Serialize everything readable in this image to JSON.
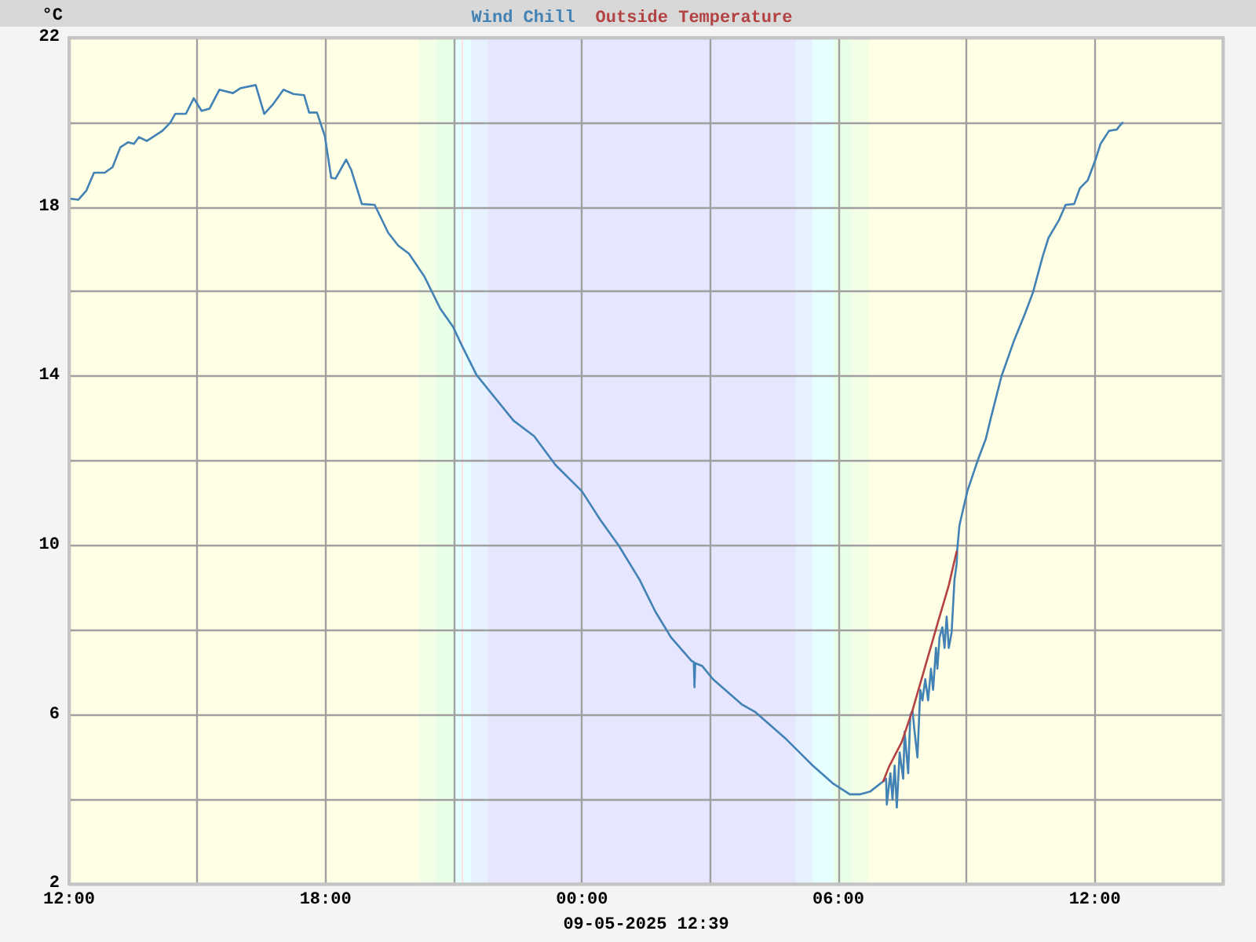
{
  "chart_data": {
    "type": "line",
    "ylabel": "°C",
    "xlabel": "09-05-2025 12:39",
    "series": [
      {
        "name": "Wind Chill",
        "color": "#4282b4",
        "x": [
          "2025-05-08T12:00",
          "2025-05-08T12:13",
          "2025-05-08T12:24",
          "2025-05-08T12:35",
          "2025-05-08T12:50",
          "2025-05-08T13:01",
          "2025-05-08T13:12",
          "2025-05-08T13:23",
          "2025-05-08T13:31",
          "2025-05-08T13:38",
          "2025-05-08T13:49",
          "2025-05-08T14:00",
          "2025-05-08T14:11",
          "2025-05-08T14:22",
          "2025-05-08T14:29",
          "2025-05-08T14:44",
          "2025-05-08T14:55",
          "2025-05-08T15:06",
          "2025-05-08T15:17",
          "2025-05-08T15:31",
          "2025-05-08T15:50",
          "2025-05-08T16:01",
          "2025-05-08T16:22",
          "2025-05-08T16:34",
          "2025-05-08T16:46",
          "2025-05-08T17:01",
          "2025-05-08T17:15",
          "2025-05-08T17:30",
          "2025-05-08T17:37",
          "2025-05-08T17:48",
          "2025-05-08T17:59",
          "2025-05-08T18:08",
          "2025-05-08T18:14",
          "2025-05-08T18:29",
          "2025-05-08T18:36",
          "2025-05-08T18:51",
          "2025-05-08T19:09",
          "2025-05-08T19:28",
          "2025-05-08T19:42",
          "2025-05-08T19:57",
          "2025-05-08T20:19",
          "2025-05-08T20:41",
          "2025-05-08T20:59",
          "2025-05-08T21:11",
          "2025-05-08T21:32",
          "2025-05-08T22:24",
          "2025-05-08T22:53",
          "2025-05-08T23:23",
          "2025-05-09T00:00",
          "2025-05-09T00:26",
          "2025-05-09T00:52",
          "2025-05-09T01:21",
          "2025-05-09T01:43",
          "2025-05-09T02:05",
          "2025-05-09T02:34",
          "2025-05-09T02:37",
          "2025-05-09T02:38",
          "2025-05-09T02:39",
          "2025-05-09T02:49",
          "2025-05-09T03:04",
          "2025-05-09T03:44",
          "2025-05-09T04:03",
          "2025-05-09T04:47",
          "2025-05-09T05:24",
          "2025-05-09T05:53",
          "2025-05-09T06:16",
          "2025-05-09T06:30",
          "2025-05-09T06:45",
          "2025-05-09T07:03",
          "2025-05-09T07:07",
          "2025-05-09T07:08",
          "2025-05-09T07:13",
          "2025-05-09T07:16",
          "2025-05-09T07:19",
          "2025-05-09T07:22",
          "2025-05-09T07:26",
          "2025-05-09T07:31",
          "2025-05-09T07:33",
          "2025-05-09T07:38",
          "2025-05-09T07:41",
          "2025-05-09T07:44",
          "2025-05-09T07:47",
          "2025-05-09T07:51",
          "2025-05-09T07:55",
          "2025-05-09T07:58",
          "2025-05-09T08:02",
          "2025-05-09T08:06",
          "2025-05-09T08:10",
          "2025-05-09T08:13",
          "2025-05-09T08:17",
          "2025-05-09T08:19",
          "2025-05-09T08:22",
          "2025-05-09T08:26",
          "2025-05-09T08:29",
          "2025-05-09T08:32",
          "2025-05-09T08:35",
          "2025-05-09T08:39",
          "2025-05-09T08:43",
          "2025-05-09T08:46",
          "2025-05-09T08:47",
          "2025-05-09T08:50",
          "2025-05-09T09:01",
          "2025-05-09T09:16",
          "2025-05-09T09:27",
          "2025-05-09T09:34",
          "2025-05-09T09:49",
          "2025-05-09T10:07",
          "2025-05-09T10:22",
          "2025-05-09T10:33",
          "2025-05-09T10:47",
          "2025-05-09T10:55",
          "2025-05-09T11:10",
          "2025-05-09T11:19",
          "2025-05-09T11:31",
          "2025-05-09T11:39",
          "2025-05-09T11:50",
          "2025-05-09T12:01",
          "2025-05-09T12:08",
          "2025-05-09T12:20",
          "2025-05-09T12:31",
          "2025-05-09T12:34",
          "2025-05-09T12:39"
        ],
        "values": [
          18.2,
          18.17,
          18.38,
          18.81,
          18.81,
          18.94,
          19.41,
          19.53,
          19.49,
          19.65,
          19.56,
          19.68,
          19.8,
          19.99,
          20.2,
          20.2,
          20.57,
          20.27,
          20.32,
          20.77,
          20.69,
          20.81,
          20.88,
          20.2,
          20.42,
          20.77,
          20.67,
          20.64,
          20.23,
          20.23,
          19.68,
          18.69,
          18.67,
          19.12,
          18.88,
          18.07,
          18.05,
          17.39,
          17.09,
          16.9,
          16.35,
          15.6,
          15.17,
          14.74,
          14.03,
          12.95,
          12.58,
          11.9,
          11.28,
          10.6,
          9.99,
          9.19,
          8.44,
          7.83,
          7.27,
          7.25,
          6.65,
          7.22,
          7.15,
          6.84,
          6.25,
          6.07,
          5.42,
          4.8,
          4.37,
          4.12,
          4.12,
          4.19,
          4.43,
          4.49,
          3.88,
          4.62,
          4.0,
          4.8,
          3.81,
          5.11,
          4.49,
          5.6,
          4.62,
          5.99,
          6.1,
          5.6,
          4.99,
          6.59,
          6.34,
          6.84,
          6.34,
          7.09,
          6.59,
          7.58,
          7.09,
          7.83,
          8.07,
          7.58,
          8.32,
          7.58,
          7.95,
          9.19,
          9.56,
          9.93,
          10.48,
          11.28,
          12.03,
          12.52,
          13.01,
          14.0,
          14.86,
          15.48,
          15.97,
          16.84,
          17.27,
          17.7,
          18.05,
          18.07,
          18.44,
          18.63,
          19.12,
          19.49,
          19.8,
          19.83,
          19.9,
          19.99
        ]
      },
      {
        "name": "Outside Temperature",
        "color": "#b44242",
        "x": [
          "2025-05-09T07:03",
          "2025-05-09T07:11",
          "2025-05-09T07:29",
          "2025-05-09T07:44",
          "2025-05-09T08:02",
          "2025-05-09T08:20",
          "2025-05-09T08:35",
          "2025-05-09T08:46"
        ],
        "values": [
          4.43,
          4.77,
          5.36,
          6.1,
          7.15,
          8.2,
          9.06,
          9.86
        ]
      }
    ],
    "xlim": [
      "2025-05-08T12:00",
      "2025-05-09T15:00"
    ],
    "xticks": [
      {
        "value": "2025-05-08T12:00",
        "label": "12:00"
      },
      {
        "value": "2025-05-08T15:00",
        "label": null
      },
      {
        "value": "2025-05-08T18:00",
        "label": "18:00"
      },
      {
        "value": "2025-05-08T21:00",
        "label": null
      },
      {
        "value": "2025-05-09T00:00",
        "label": "00:00"
      },
      {
        "value": "2025-05-09T03:00",
        "label": null
      },
      {
        "value": "2025-05-09T06:00",
        "label": "06:00"
      },
      {
        "value": "2025-05-09T09:00",
        "label": null
      },
      {
        "value": "2025-05-09T12:00",
        "label": "12:00"
      }
    ],
    "ylim": [
      2,
      22
    ],
    "yticks": [
      2,
      {
        "value": 4,
        "label": null
      },
      6,
      {
        "value": 8,
        "label": null
      },
      10,
      {
        "value": 12,
        "label": null
      },
      14,
      {
        "value": 16,
        "label": null
      },
      18,
      {
        "value": 20,
        "label": null
      },
      22
    ],
    "bands": [
      {
        "axis": "x",
        "from": "2025-05-08T12:00",
        "to": "2025-05-08T20:12",
        "color": "#ffffe6"
      },
      {
        "axis": "x",
        "from": "2025-05-08T20:12",
        "to": "2025-05-08T20:36",
        "color": "#f2ffe6"
      },
      {
        "axis": "x",
        "from": "2025-05-08T20:36",
        "to": "2025-05-08T21:00",
        "color": "#e8ffe8"
      },
      {
        "axis": "x",
        "from": "2025-05-08T21:00",
        "to": "2025-05-08T21:24",
        "color": "#e6ffff"
      },
      {
        "axis": "x",
        "from": "2025-05-08T21:24",
        "to": "2025-05-08T21:48",
        "color": "#e6f2ff"
      },
      {
        "axis": "x",
        "from": "2025-05-08T21:48",
        "to": "2025-05-09T05:00",
        "color": "#e6e6ff"
      },
      {
        "axis": "x",
        "from": "2025-05-09T05:00",
        "to": "2025-05-09T05:24",
        "color": "#e6f2ff"
      },
      {
        "axis": "x",
        "from": "2025-05-09T05:24",
        "to": "2025-05-09T05:54",
        "color": "#e6ffff"
      },
      {
        "axis": "x",
        "from": "2025-05-09T05:54",
        "to": "2025-05-09T06:18",
        "color": "#e8ffe8"
      },
      {
        "axis": "x",
        "from": "2025-05-09T06:18",
        "to": "2025-05-09T06:42",
        "color": "#f2ffe6"
      },
      {
        "axis": "x",
        "from": "2025-05-09T06:42",
        "to": "2025-05-09T15:00",
        "color": "#ffffe6"
      }
    ],
    "ref_lines": [
      {
        "axis": "x",
        "value": "2025-05-08T21:12",
        "color": "#ffe0e0"
      }
    ],
    "grid": true,
    "legend": "top",
    "marker": "none"
  }
}
